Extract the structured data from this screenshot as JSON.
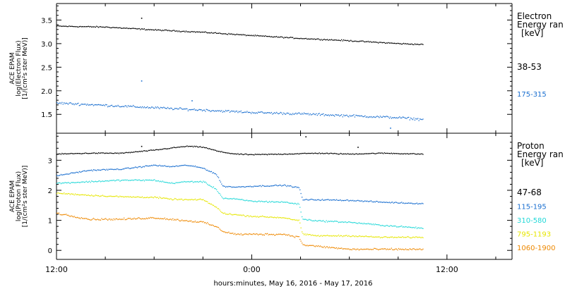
{
  "figure": {
    "xlabel": "hours:minutes, May 16, 2016 - May 17, 2016",
    "x_ticks": [
      "12:00",
      "0:00",
      "12:00"
    ],
    "x_tick_hours": [
      0,
      12,
      24
    ],
    "x_range_hours": [
      0,
      28
    ],
    "data_end_hours": 22.5
  },
  "chart_data": [
    {
      "type": "scatter",
      "panel": "electron",
      "ylabel": [
        "ACE EPAM",
        "log(Electron Flux)",
        "[1/(cm²s ster MeV)]"
      ],
      "ylim": [
        1.1,
        3.85
      ],
      "yticks": [
        "1.5",
        "2.0",
        "2.5",
        "3.0",
        "3.5"
      ],
      "ytick_values": [
        1.5,
        2.0,
        2.5,
        3.0,
        3.5
      ],
      "legend_title": [
        "Electron",
        "Energy ran",
        "[keV]"
      ],
      "series": [
        {
          "name": "38-53",
          "color": "#000000",
          "noise": 0.018,
          "x": [
            0,
            3,
            6,
            9,
            12,
            15,
            18,
            21,
            22.5
          ],
          "y": [
            3.38,
            3.36,
            3.3,
            3.25,
            3.18,
            3.12,
            3.07,
            3.01,
            2.99
          ],
          "outliers": [
            [
              5.2,
              3.55
            ]
          ]
        },
        {
          "name": "175-315",
          "color": "#1a6fd0",
          "noise": 0.035,
          "x": [
            0,
            3,
            6,
            9,
            12,
            15,
            18,
            21,
            22.5
          ],
          "y": [
            1.75,
            1.7,
            1.65,
            1.6,
            1.55,
            1.52,
            1.48,
            1.44,
            1.4
          ],
          "outliers": [
            [
              5.2,
              2.22
            ],
            [
              8.3,
              1.8
            ],
            [
              20.5,
              1.22
            ]
          ]
        }
      ]
    },
    {
      "type": "scatter",
      "panel": "proton",
      "ylabel": [
        "ACE EPAM",
        "log(Proton Flux)",
        "[1/(cm²s ster MeV)]"
      ],
      "ylim": [
        -0.3,
        3.9
      ],
      "yticks": [
        "0",
        "1",
        "2",
        "3"
      ],
      "ytick_values": [
        0,
        1,
        2,
        3
      ],
      "legend_title": [
        "Proton",
        "Energy ran",
        "[keV]"
      ],
      "series": [
        {
          "name": "47-68",
          "color": "#000000",
          "noise": 0.025,
          "x": [
            0,
            2,
            4,
            6,
            7,
            8,
            9,
            10,
            11,
            12,
            14,
            16,
            18,
            20,
            22.5
          ],
          "y": [
            3.22,
            3.25,
            3.25,
            3.35,
            3.42,
            3.48,
            3.45,
            3.3,
            3.22,
            3.2,
            3.22,
            3.25,
            3.22,
            3.25,
            3.22
          ],
          "outliers": [
            [
              5.2,
              3.48
            ],
            [
              15.3,
              3.8
            ],
            [
              18.5,
              3.45
            ]
          ]
        },
        {
          "name": "115-195",
          "color": "#1a6fd0",
          "noise": 0.03,
          "x": [
            0,
            2,
            4,
            6,
            7,
            8,
            9,
            9.8,
            10.2,
            11,
            12,
            14,
            14.9,
            15.1,
            16,
            18,
            20,
            22.5
          ],
          "y": [
            2.5,
            2.68,
            2.72,
            2.85,
            2.8,
            2.85,
            2.75,
            2.55,
            2.15,
            2.12,
            2.15,
            2.18,
            2.1,
            1.7,
            1.7,
            1.68,
            1.62,
            1.57
          ]
        },
        {
          "name": "310-580",
          "color": "#22d8d8",
          "noise": 0.035,
          "x": [
            0,
            2,
            4,
            6,
            7,
            8,
            9,
            9.8,
            10.2,
            11,
            12,
            14,
            14.9,
            15.1,
            16,
            18,
            20,
            22.5
          ],
          "y": [
            2.25,
            2.3,
            2.35,
            2.35,
            2.25,
            2.3,
            2.3,
            2.05,
            1.75,
            1.72,
            1.65,
            1.62,
            1.55,
            1.05,
            1.0,
            0.95,
            0.85,
            0.75
          ]
        },
        {
          "name": "795-1193",
          "color": "#e6e600",
          "noise": 0.035,
          "x": [
            0,
            2,
            4,
            6,
            7,
            8,
            9,
            9.8,
            10.2,
            11,
            12,
            14,
            14.9,
            15.1,
            16,
            18,
            20,
            22.5
          ],
          "y": [
            1.92,
            1.85,
            1.8,
            1.78,
            1.72,
            1.7,
            1.7,
            1.45,
            1.25,
            1.2,
            1.15,
            1.1,
            1.0,
            0.55,
            0.5,
            0.5,
            0.45,
            0.45
          ]
        },
        {
          "name": "1060-1900",
          "color": "#ee8800",
          "noise": 0.045,
          "x": [
            0,
            2,
            4,
            6,
            7,
            8,
            9,
            9.8,
            10.2,
            11,
            12,
            14,
            14.9,
            15.1,
            16,
            18,
            20,
            22.5
          ],
          "y": [
            1.25,
            1.05,
            1.05,
            1.1,
            1.05,
            1.0,
            0.95,
            0.8,
            0.65,
            0.55,
            0.55,
            0.55,
            0.45,
            0.2,
            0.15,
            0.05,
            0.05,
            0.05
          ]
        }
      ]
    }
  ]
}
